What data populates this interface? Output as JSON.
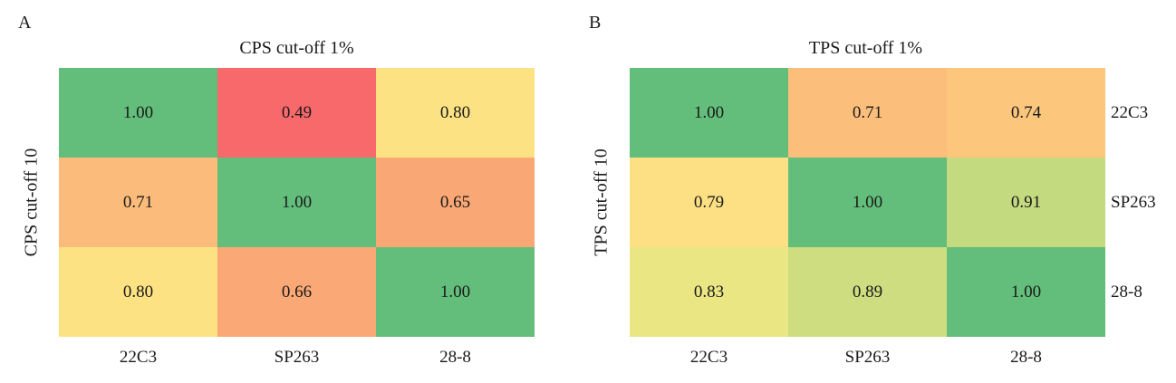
{
  "chart_data": [
    {
      "type": "heatmap",
      "panel_label": "A",
      "title": "CPS cut-off 1%",
      "xlabel": "",
      "ylabel": "CPS cut-off 10",
      "x_categories": [
        "22C3",
        "SP263",
        "28-8"
      ],
      "y_categories": [],
      "values": [
        [
          1.0,
          0.49,
          0.8
        ],
        [
          0.71,
          1.0,
          0.65
        ],
        [
          0.8,
          0.66,
          1.0
        ]
      ],
      "value_labels": [
        [
          "1.00",
          "0.49",
          "0.80"
        ],
        [
          "0.71",
          "1.00",
          "0.65"
        ],
        [
          "0.80",
          "0.66",
          "1.00"
        ]
      ],
      "colors": [
        [
          "#63be7b",
          "#f8696b",
          "#fde283"
        ],
        [
          "#fbbc7b",
          "#63be7b",
          "#f9a774"
        ],
        [
          "#fde283",
          "#faa876",
          "#63be7b"
        ]
      ],
      "grid": false
    },
    {
      "type": "heatmap",
      "panel_label": "B",
      "title": "TPS cut-off 1%",
      "xlabel": "",
      "ylabel": "TPS cut-off 10",
      "x_categories": [
        "22C3",
        "SP263",
        "28-8"
      ],
      "y_categories": [
        "22C3",
        "SP263",
        "28-8"
      ],
      "values": [
        [
          1.0,
          0.71,
          0.74
        ],
        [
          0.79,
          1.0,
          0.91
        ],
        [
          0.83,
          0.89,
          1.0
        ]
      ],
      "value_labels": [
        [
          "1.00",
          "0.71",
          "0.74"
        ],
        [
          "0.79",
          "1.00",
          "0.91"
        ],
        [
          "0.83",
          "0.89",
          "1.00"
        ]
      ],
      "colors": [
        [
          "#63be7b",
          "#fbbe7b",
          "#fcc77d"
        ],
        [
          "#fde083",
          "#63be7b",
          "#c4da7f"
        ],
        [
          "#eae683",
          "#cedd80",
          "#63be7b"
        ]
      ],
      "grid": false
    }
  ]
}
